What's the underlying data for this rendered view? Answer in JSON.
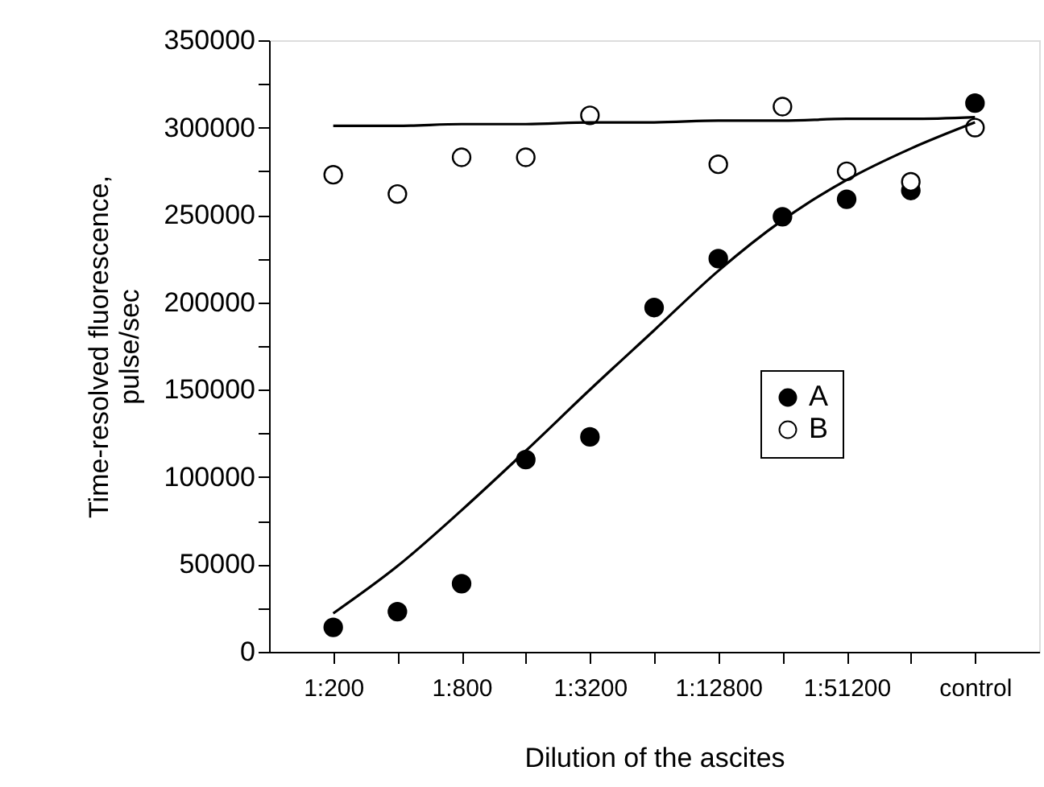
{
  "chart_data": {
    "type": "scatter",
    "xlabel": "Dilution of the ascites",
    "ylabel": "Time-resolved fluorescence,\npulse/sec",
    "categories": [
      "1:200",
      null,
      "1:800",
      null,
      "1:3200",
      null,
      "1:12800",
      null,
      "1:51200",
      null,
      "control"
    ],
    "ylim": [
      0,
      350000
    ],
    "yticks": [
      0,
      {
        "value": 25000,
        "label": null
      },
      50000,
      {
        "value": 75000,
        "label": null
      },
      100000,
      {
        "value": 125000,
        "label": null
      },
      150000,
      {
        "value": 175000,
        "label": null
      },
      200000,
      {
        "value": 225000,
        "label": null
      },
      250000,
      {
        "value": 275000,
        "label": null
      },
      300000,
      {
        "value": 325000,
        "label": null
      },
      350000
    ],
    "marker": "circle",
    "grid": false,
    "legend": "right",
    "series": [
      {
        "name": "A",
        "color": "#000000",
        "values": [
          14000,
          23000,
          39000,
          110000,
          123000,
          197000,
          225000,
          249000,
          259000,
          264000,
          314000
        ]
      },
      {
        "name": "B",
        "color": "#ffffff",
        "values": [
          273000,
          262000,
          283000,
          283000,
          307000,
          null,
          279000,
          312000,
          275000,
          269000,
          300000
        ]
      },
      {
        "type": "line",
        "color": "#000000",
        "marker": "none",
        "line_style": "solid",
        "values": [
          22000,
          49000,
          81000,
          115000,
          150000,
          184000,
          218000,
          247000,
          270000,
          288000,
          303000
        ]
      },
      {
        "type": "line",
        "color": "#000000",
        "marker": "none",
        "line_style": "solid",
        "values": [
          301000,
          301000,
          302000,
          302000,
          303000,
          303000,
          304000,
          304000,
          305000,
          305000,
          306000
        ]
      }
    ]
  }
}
